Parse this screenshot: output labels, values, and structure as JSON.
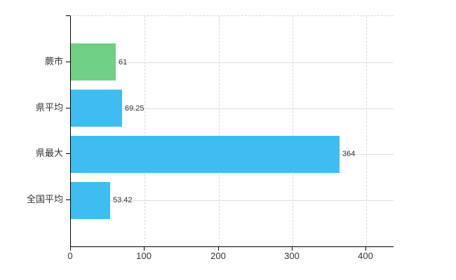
{
  "chart_data": {
    "type": "bar",
    "orientation": "horizontal",
    "title": "",
    "xlabel": "",
    "ylabel": "",
    "categories": [
      "蕨市",
      "県平均",
      "県最大",
      "全国平均"
    ],
    "values": [
      61,
      69.25,
      364,
      53.42
    ],
    "value_labels": [
      "61",
      "69.25",
      "364",
      "53.42"
    ],
    "bar_colors": [
      "#6FD086",
      "#3EBDF0",
      "#3EBDF0",
      "#3EBDF0"
    ],
    "xlim": [
      0,
      437
    ],
    "xticks": [
      0,
      100,
      200,
      300,
      400
    ],
    "xtick_labels": [
      "0",
      "100",
      "200",
      "300",
      "400"
    ],
    "grid": true,
    "legend": "none"
  },
  "colors": {
    "background": "#ffffff",
    "axis_line": "#000000",
    "vertical_grid": "#d9d9df",
    "horizontal_grid": "#dbe1db",
    "top_border": "#d8d8e0",
    "text": "#333333",
    "green_bar": "#6FD086",
    "blue_bar": "#3EBDF0"
  }
}
